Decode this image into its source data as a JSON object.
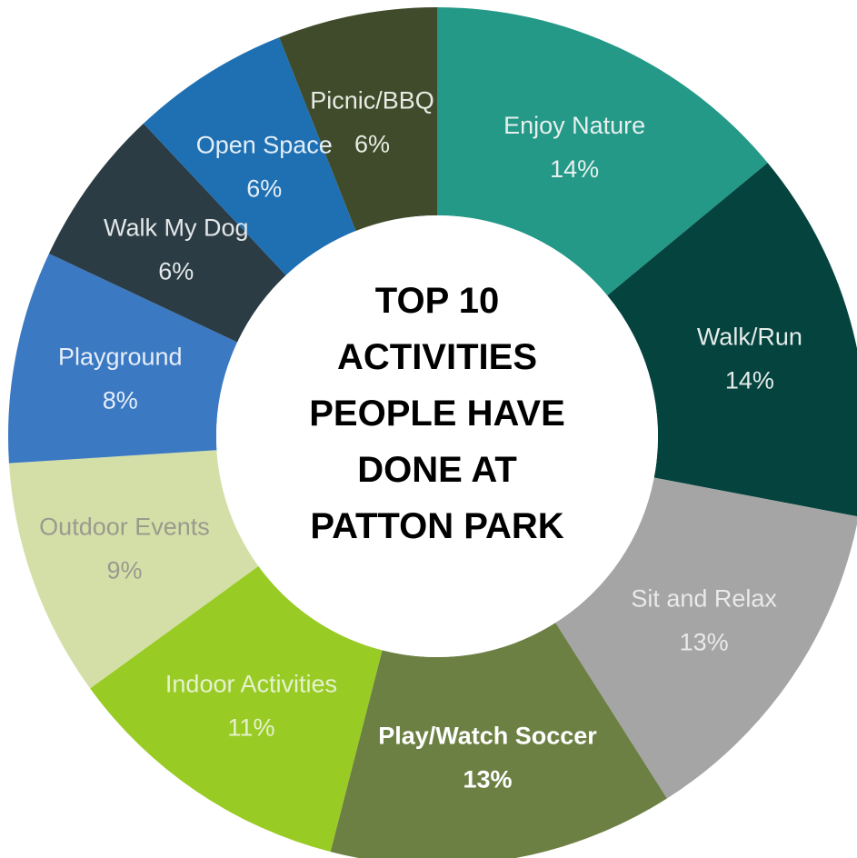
{
  "chart_data": {
    "type": "pie",
    "title_lines": [
      "TOP 10",
      "ACTIVITIES",
      "PEOPLE HAVE",
      "DONE AT",
      "PATTON PARK"
    ],
    "slices": [
      {
        "label": "Enjoy Nature",
        "value": 14,
        "value_label": "14%",
        "color": "#249987",
        "label_color": "#e8f0ee",
        "bold": false
      },
      {
        "label": "Walk/Run",
        "value": 14,
        "value_label": "14%",
        "color": "#05433e",
        "label_color": "#e5ecea",
        "bold": false
      },
      {
        "label": "Sit and Relax",
        "value": 13,
        "value_label": "13%",
        "color": "#a5a5a5",
        "label_color": "#e9e9e9",
        "bold": false
      },
      {
        "label": "Play/Watch Soccer",
        "value": 13,
        "value_label": "13%",
        "color": "#6d8044",
        "label_color": "#ffffff",
        "bold": true
      },
      {
        "label": "Indoor Activities",
        "value": 11,
        "value_label": "11%",
        "color": "#99cb25",
        "label_color": "#e6f2ce",
        "bold": false
      },
      {
        "label": "Outdoor Events",
        "value": 9,
        "value_label": "9%",
        "color": "#d4dfa8",
        "label_color": "#9a9a8d",
        "bold": false
      },
      {
        "label": "Playground",
        "value": 8,
        "value_label": "8%",
        "color": "#3b79c3",
        "label_color": "#e6eef8",
        "bold": false
      },
      {
        "label": "Walk My Dog",
        "value": 6,
        "value_label": "6%",
        "color": "#2b3c44",
        "label_color": "#e3e7e9",
        "bold": false
      },
      {
        "label": "Open Space",
        "value": 6,
        "value_label": "6%",
        "color": "#1f70b3",
        "label_color": "#e4eef7",
        "bold": false
      },
      {
        "label": "Picnic/BBQ",
        "value": 6,
        "value_label": "6%",
        "color": "#3f4b2a",
        "label_color": "#e9ebe4",
        "bold": false
      }
    ]
  }
}
